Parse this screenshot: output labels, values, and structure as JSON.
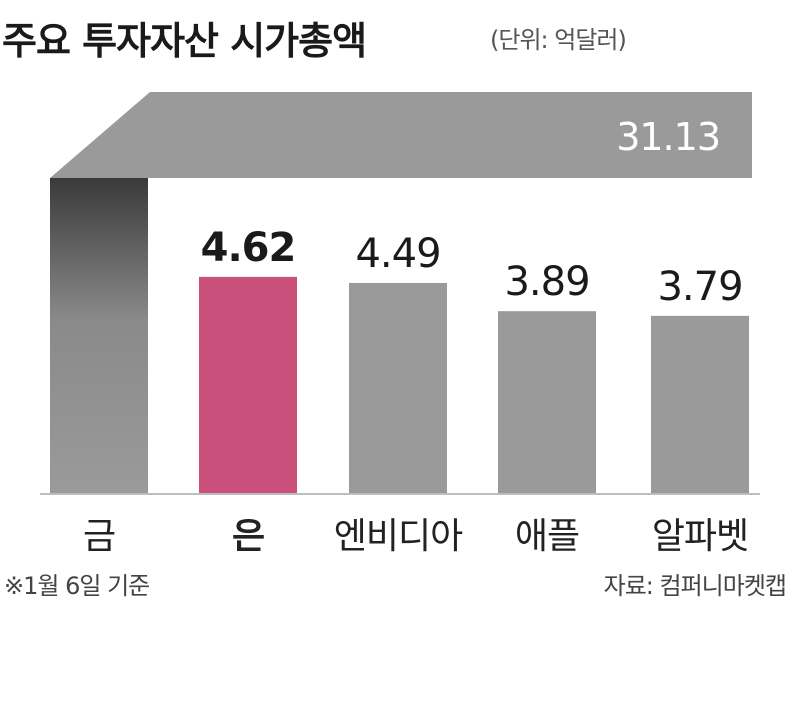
{
  "title": "주요 투자자산 시가총액",
  "unit": "(단위: 억달러)",
  "footnote": "※1월 6일 기준",
  "source": "자료: 컴퍼니마켓캡",
  "colors": {
    "highlight": "#c8507a",
    "bar": "#9a9a9a",
    "bar_dark": "#6e6e6e"
  },
  "chart_data": {
    "type": "bar",
    "categories": [
      "금",
      "은",
      "엔비디아",
      "애플",
      "알파벳"
    ],
    "values": [
      31.13,
      4.62,
      4.49,
      3.89,
      3.79
    ],
    "value_labels": [
      "31.13",
      "4.62",
      "4.49",
      "3.89",
      "3.79"
    ],
    "highlight_index": 1,
    "broken_axis_index": 0,
    "title": "주요 투자자산 시가총액",
    "xlabel": "",
    "ylabel": "",
    "grid": false,
    "legend": "none"
  }
}
